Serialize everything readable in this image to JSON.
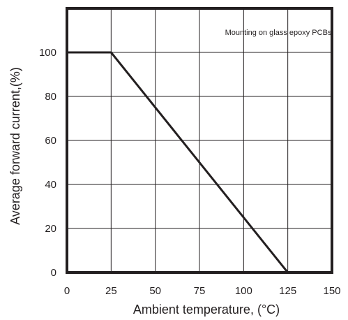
{
  "chart_data": {
    "type": "line",
    "title": "",
    "xlabel": "Ambient temperature, (°C)",
    "ylabel": "Average forward current,(%)",
    "xlim": [
      0,
      150
    ],
    "ylim": [
      0,
      120
    ],
    "x_ticks": [
      "0",
      "25",
      "50",
      "75",
      "100",
      "125",
      "150"
    ],
    "y_ticks": [
      "0",
      "20",
      "40",
      "60",
      "80",
      "100"
    ],
    "grid": true,
    "annotation": "Mounting on glass epoxy PCBs",
    "series": [
      {
        "x": [
          0,
          25,
          125
        ],
        "y": [
          100,
          100,
          0
        ]
      }
    ]
  }
}
